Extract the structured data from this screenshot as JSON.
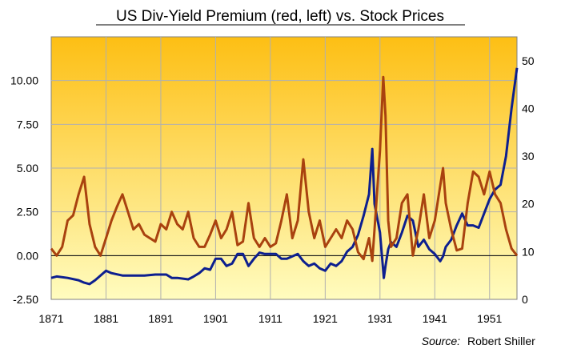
{
  "chart_data": {
    "type": "line",
    "title": "US Div-Yield Premium (red, left) vs. Stock Prices",
    "source_label": "Source:",
    "source_value": "Robert Shiller",
    "x_ticks": [
      "1871",
      "1881",
      "1891",
      "1901",
      "1911",
      "1921",
      "1931",
      "1941",
      "1951"
    ],
    "xlim": [
      1871,
      1956
    ],
    "left_axis": {
      "ylim": [
        -2.5,
        12.5
      ],
      "ticks": [
        "10.00",
        "7.50",
        "5.00",
        "2.50",
        "0.00",
        "-2.50"
      ],
      "tick_values": [
        10,
        7.5,
        5,
        2.5,
        0,
        -2.5
      ]
    },
    "right_axis": {
      "ylim": [
        0,
        55
      ],
      "ticks": [
        "50",
        "40",
        "30",
        "20",
        "10",
        "0"
      ],
      "tick_values": [
        50,
        40,
        30,
        20,
        10,
        0
      ]
    },
    "colors": {
      "bg_top": "#fdbf14",
      "bg_bottom": "#fffcbf",
      "grid": "#b0b0b0",
      "premium": "#a9420f",
      "stock": "#0d1f8f"
    },
    "series": [
      {
        "name": "Div-Yield Premium",
        "axis": "left",
        "x": [
          1871,
          1872,
          1873,
          1874,
          1875,
          1876,
          1877,
          1878,
          1879,
          1880,
          1881,
          1882,
          1883,
          1884,
          1885,
          1886,
          1887,
          1888,
          1889,
          1890,
          1891,
          1892,
          1893,
          1894,
          1895,
          1896,
          1897,
          1898,
          1899,
          1900,
          1901,
          1902,
          1903,
          1904,
          1905,
          1906,
          1907,
          1908,
          1909,
          1910,
          1911,
          1912,
          1913,
          1914,
          1915,
          1916,
          1917,
          1918,
          1919,
          1920,
          1921,
          1922,
          1923,
          1924,
          1925,
          1926,
          1927,
          1928,
          1929,
          1929.6,
          1930,
          1931,
          1931.6,
          1932,
          1932.5,
          1933,
          1934,
          1935,
          1936,
          1937,
          1938,
          1939,
          1940,
          1941,
          1942,
          1942.5,
          1943,
          1944,
          1945,
          1946,
          1947,
          1948,
          1949,
          1950,
          1951,
          1952,
          1953,
          1954,
          1955,
          1956
        ],
        "values": [
          0.4,
          0.0,
          0.5,
          2.0,
          2.3,
          3.5,
          4.5,
          1.8,
          0.5,
          0.0,
          1.0,
          2.0,
          2.8,
          3.5,
          2.5,
          1.5,
          1.8,
          1.2,
          1.0,
          0.8,
          1.8,
          1.5,
          2.5,
          1.8,
          1.5,
          2.5,
          1.0,
          0.5,
          0.5,
          1.2,
          2.0,
          1.0,
          1.5,
          2.5,
          0.6,
          0.8,
          3.0,
          1.0,
          0.5,
          1.0,
          0.5,
          0.7,
          2.0,
          3.5,
          1.0,
          2.0,
          5.5,
          2.5,
          1.0,
          2.0,
          0.5,
          1.0,
          1.5,
          1.0,
          2.0,
          1.5,
          0.2,
          -0.2,
          1.0,
          -0.3,
          1.5,
          6.0,
          10.2,
          8.0,
          2.0,
          0.5,
          1.0,
          3.0,
          3.5,
          0.0,
          1.5,
          3.5,
          1.0,
          2.0,
          4.0,
          5.0,
          3.0,
          1.5,
          0.3,
          0.4,
          3.0,
          4.8,
          4.5,
          3.5,
          4.8,
          3.5,
          3.0,
          1.5,
          0.4,
          0.0
        ]
      },
      {
        "name": "Stock Prices",
        "axis": "right",
        "x": [
          1871,
          1872,
          1874,
          1876,
          1877,
          1878,
          1879,
          1880,
          1881,
          1882,
          1884,
          1886,
          1888,
          1890,
          1892,
          1893,
          1894,
          1896,
          1897,
          1898,
          1899,
          1900,
          1901,
          1902,
          1903,
          1904,
          1905,
          1906,
          1907,
          1908,
          1909,
          1910,
          1911,
          1912,
          1913,
          1914,
          1915,
          1916,
          1917,
          1918,
          1919,
          1920,
          1921,
          1922,
          1923,
          1924,
          1925,
          1926,
          1927,
          1928,
          1929,
          1929.6,
          1930,
          1931,
          1931.7,
          1932,
          1932.5,
          1933,
          1934,
          1935,
          1936,
          1937,
          1938,
          1939,
          1940,
          1941,
          1942,
          1942.5,
          1943,
          1944,
          1945,
          1946,
          1947,
          1948,
          1949,
          1950,
          1951,
          1952,
          1953,
          1954,
          1955,
          1956
        ],
        "values": [
          4.5,
          4.8,
          4.5,
          4.0,
          3.5,
          3.2,
          4.0,
          5.0,
          6.0,
          5.5,
          5.0,
          5.0,
          5.0,
          5.2,
          5.2,
          4.5,
          4.5,
          4.2,
          4.8,
          5.5,
          6.5,
          6.2,
          8.5,
          8.5,
          7.0,
          7.5,
          9.5,
          9.5,
          7.0,
          8.5,
          9.8,
          9.5,
          9.5,
          9.5,
          8.5,
          8.5,
          9.0,
          9.5,
          8.0,
          7.0,
          7.5,
          6.5,
          6.0,
          7.5,
          7.0,
          8.0,
          10.0,
          11.0,
          13.5,
          17.5,
          22.0,
          31.5,
          20.0,
          14.0,
          4.5,
          7.0,
          10.5,
          12.0,
          11.0,
          14.0,
          17.5,
          16.5,
          11.0,
          12.5,
          10.5,
          9.5,
          8.0,
          9.0,
          11.0,
          12.5,
          15.5,
          18.0,
          15.5,
          15.5,
          15.0,
          18.0,
          21.0,
          23.0,
          24.0,
          30.0,
          40.0,
          48.5
        ]
      }
    ]
  }
}
